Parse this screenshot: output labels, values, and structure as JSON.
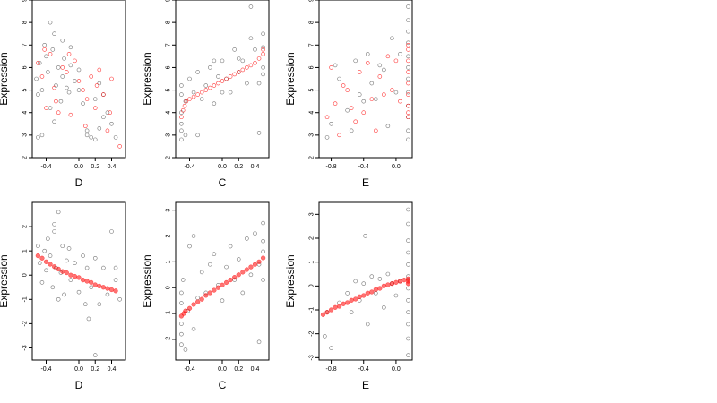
{
  "colors": {
    "points": "#000000",
    "highlight": "#ff0000",
    "frame": "#000000",
    "background": "#ffffff"
  },
  "chart_data": [
    {
      "type": "scatter",
      "panel": "top-left",
      "xlabel": "D",
      "ylabel": "Expression",
      "xlim": [
        -0.57,
        0.57
      ],
      "ylim": [
        2,
        9
      ],
      "xticks": [
        -0.4,
        0.0,
        0.2,
        0.4
      ],
      "xtick_labels": [
        "-0.4",
        "0.0",
        "0.2",
        "0.4"
      ],
      "yticks": [
        2,
        3,
        4,
        5,
        6,
        7,
        8,
        9
      ],
      "ytick_labels": [
        "2",
        "3",
        "4",
        "5",
        "6",
        "7",
        "8",
        "9"
      ],
      "grid": false,
      "legend": "none",
      "series": [
        {
          "color": "black",
          "marker": "open-circle",
          "x": [
            -0.52,
            -0.5,
            -0.48,
            -0.45,
            -0.42,
            -0.4,
            -0.38,
            -0.35,
            -0.32,
            -0.3,
            -0.28,
            -0.25,
            -0.22,
            -0.2,
            -0.18,
            -0.15,
            -0.12,
            -0.1,
            -0.05,
            0.0,
            0.05,
            0.1,
            0.15,
            0.2,
            0.25,
            0.3,
            0.35,
            0.4,
            0.45,
            -0.45,
            -0.35,
            -0.2,
            -0.1,
            0.1,
            0.2,
            0.3,
            -0.5,
            -0.3,
            0.0,
            0.25
          ],
          "y": [
            5.5,
            4.8,
            6.2,
            5.0,
            7.0,
            6.5,
            5.8,
            4.2,
            6.8,
            7.5,
            5.2,
            6.0,
            4.5,
            5.6,
            6.4,
            5.1,
            4.9,
            6.1,
            5.4,
            5.0,
            4.4,
            3.2,
            2.9,
            4.6,
            5.3,
            3.8,
            4.0,
            3.5,
            2.9,
            3.0,
            8.0,
            7.2,
            6.9,
            3.0,
            2.8,
            4.8,
            2.9,
            3.6,
            5.9,
            3.3
          ]
        },
        {
          "color": "red",
          "marker": "open-circle",
          "x": [
            -0.5,
            -0.45,
            -0.4,
            -0.35,
            -0.3,
            -0.25,
            -0.2,
            -0.15,
            -0.1,
            -0.05,
            0.0,
            0.05,
            0.1,
            0.15,
            0.2,
            0.25,
            0.3,
            0.35,
            0.4,
            0.5,
            -0.42,
            -0.28,
            -0.12,
            0.08,
            0.22,
            0.38
          ],
          "y": [
            6.2,
            5.6,
            4.2,
            6.6,
            5.1,
            4.0,
            6.0,
            5.8,
            3.9,
            6.3,
            5.4,
            5.0,
            4.6,
            5.6,
            4.2,
            5.9,
            4.8,
            3.2,
            5.5,
            2.5,
            6.8,
            4.5,
            6.6,
            3.4,
            5.2,
            4.0
          ]
        }
      ]
    },
    {
      "type": "scatter",
      "panel": "top-middle",
      "xlabel": "C",
      "ylabel": "Expression",
      "xlim": [
        -0.57,
        0.57
      ],
      "ylim": [
        2,
        9
      ],
      "xticks": [
        -0.4,
        0.0,
        0.2,
        0.4
      ],
      "xtick_labels": [
        "-0.4",
        "0.0",
        "0.2",
        "0.4"
      ],
      "yticks": [
        2,
        3,
        4,
        5,
        6,
        7,
        8,
        9
      ],
      "ytick_labels": [
        "2",
        "3",
        "4",
        "5",
        "6",
        "7",
        "8",
        "9"
      ],
      "grid": false,
      "legend": "none",
      "series": [
        {
          "color": "black",
          "marker": "open-circle",
          "x": [
            -0.5,
            -0.5,
            -0.5,
            -0.5,
            -0.5,
            -0.5,
            -0.45,
            -0.45,
            -0.4,
            -0.35,
            -0.3,
            -0.3,
            -0.25,
            -0.2,
            -0.15,
            -0.1,
            -0.05,
            0.0,
            0.05,
            0.1,
            0.15,
            0.2,
            0.25,
            0.3,
            0.35,
            0.4,
            0.45,
            0.5,
            0.5,
            0.5,
            0.5,
            -0.1,
            0.0,
            0.2,
            0.35,
            0.45
          ],
          "y": [
            2.8,
            3.2,
            3.5,
            4.0,
            4.8,
            5.2,
            3.0,
            4.5,
            5.5,
            4.9,
            3.0,
            5.8,
            4.6,
            5.2,
            6.0,
            4.4,
            5.6,
            6.3,
            5.5,
            4.9,
            6.8,
            5.8,
            6.3,
            5.3,
            7.3,
            6.8,
            5.3,
            6.9,
            7.5,
            6.0,
            5.7,
            6.3,
            4.9,
            6.4,
            8.7,
            3.1
          ]
        },
        {
          "color": "red",
          "marker": "open-circle",
          "x": [
            -0.5,
            -0.48,
            -0.46,
            -0.44,
            -0.4,
            -0.35,
            -0.3,
            -0.25,
            -0.2,
            -0.15,
            -0.1,
            -0.05,
            0.0,
            0.05,
            0.1,
            0.15,
            0.2,
            0.25,
            0.3,
            0.35,
            0.4,
            0.45,
            0.5,
            0.5
          ],
          "y": [
            3.8,
            4.1,
            4.3,
            4.5,
            4.6,
            4.7,
            4.8,
            4.9,
            5.0,
            5.1,
            5.2,
            5.3,
            5.4,
            5.5,
            5.6,
            5.7,
            5.8,
            5.9,
            6.0,
            6.1,
            6.2,
            6.4,
            6.6,
            6.8
          ]
        }
      ]
    },
    {
      "type": "scatter",
      "panel": "top-right",
      "xlabel": "E",
      "ylabel": "Expression",
      "xlim": [
        -0.95,
        0.2
      ],
      "ylim": [
        2,
        9
      ],
      "xticks": [
        -0.8,
        -0.4,
        0.0
      ],
      "xtick_labels": [
        "-0.8",
        "-0.4",
        "0.0"
      ],
      "yticks": [
        2,
        3,
        4,
        5,
        6,
        7,
        8,
        9
      ],
      "ytick_labels": [
        "2",
        "3",
        "4",
        "5",
        "6",
        "7",
        "8",
        "9"
      ],
      "grid": false,
      "legend": "none",
      "series": [
        {
          "color": "black",
          "marker": "open-circle",
          "x": [
            -0.85,
            -0.8,
            -0.75,
            -0.7,
            -0.6,
            -0.55,
            -0.5,
            -0.45,
            -0.4,
            -0.35,
            -0.3,
            -0.25,
            -0.2,
            -0.15,
            -0.1,
            -0.05,
            0.0,
            0.05,
            0.15,
            0.15,
            0.15,
            0.15,
            0.15,
            0.15,
            0.15,
            0.15,
            0.15,
            0.15,
            0.15,
            0.15
          ],
          "y": [
            2.9,
            3.5,
            6.1,
            5.5,
            4.1,
            3.2,
            6.3,
            4.8,
            4.5,
            6.6,
            5.3,
            4.6,
            6.1,
            5.9,
            3.4,
            7.3,
            4.9,
            6.6,
            2.8,
            3.2,
            3.8,
            4.3,
            4.9,
            5.5,
            6.0,
            6.5,
            7.1,
            7.6,
            8.1,
            8.7
          ]
        },
        {
          "color": "red",
          "marker": "open-circle",
          "x": [
            -0.85,
            -0.8,
            -0.75,
            -0.7,
            -0.65,
            -0.6,
            -0.55,
            -0.5,
            -0.45,
            -0.4,
            -0.35,
            -0.3,
            -0.25,
            -0.2,
            -0.15,
            -0.1,
            -0.05,
            0.0,
            0.05,
            0.15,
            0.15,
            0.15,
            0.15,
            0.15,
            0.15,
            0.15,
            0.15,
            0.15
          ],
          "y": [
            3.8,
            6.0,
            4.4,
            3.0,
            5.2,
            5.0,
            4.2,
            3.6,
            5.8,
            4.0,
            6.2,
            4.6,
            3.2,
            5.6,
            4.8,
            6.5,
            5.0,
            6.3,
            4.5,
            3.8,
            4.3,
            4.8,
            5.3,
            5.8,
            6.3,
            6.8,
            7.0,
            4.0
          ]
        }
      ]
    },
    {
      "type": "scatter",
      "panel": "bottom-left",
      "xlabel": "D",
      "ylabel": "Expression",
      "xlim": [
        -0.57,
        0.57
      ],
      "ylim": [
        -3.5,
        3.0
      ],
      "xticks": [
        -0.4,
        0.0,
        0.2,
        0.4
      ],
      "xtick_labels": [
        "-0.4",
        "0.0",
        "0.2",
        "0.4"
      ],
      "yticks": [
        -3,
        -2,
        -1,
        0,
        1,
        2
      ],
      "ytick_labels": [
        "-3",
        "-2",
        "-1",
        "0",
        "1",
        "2"
      ],
      "grid": false,
      "legend": "none",
      "series": [
        {
          "color": "black",
          "marker": "open-circle",
          "x": [
            -0.5,
            -0.48,
            -0.45,
            -0.42,
            -0.4,
            -0.38,
            -0.35,
            -0.32,
            -0.3,
            -0.28,
            -0.25,
            -0.22,
            -0.2,
            -0.18,
            -0.15,
            -0.12,
            -0.1,
            -0.05,
            0.0,
            0.05,
            0.08,
            0.1,
            0.12,
            0.15,
            0.2,
            0.25,
            0.3,
            0.35,
            0.4,
            0.45,
            0.5,
            -0.3,
            -0.25,
            0.2,
            0.45
          ],
          "y": [
            1.2,
            0.5,
            -0.3,
            1.0,
            0.2,
            1.5,
            0.8,
            -0.5,
            1.8,
            0.3,
            2.6,
            0.1,
            1.2,
            -0.8,
            0.6,
            1.1,
            -0.2,
            0.5,
            -0.7,
            0.8,
            -1.2,
            0.3,
            -1.8,
            -0.5,
            0.7,
            -1.2,
            0.3,
            -0.8,
            1.8,
            -0.2,
            -1.0,
            2.1,
            -1.0,
            -3.3,
            0.3
          ]
        },
        {
          "color": "red",
          "marker": "filled-circle",
          "x": [
            -0.5,
            -0.45,
            -0.4,
            -0.35,
            -0.3,
            -0.25,
            -0.2,
            -0.15,
            -0.1,
            -0.05,
            0.0,
            0.05,
            0.1,
            0.15,
            0.2,
            0.25,
            0.3,
            0.35,
            0.4,
            0.45
          ],
          "y": [
            0.8,
            0.7,
            0.55,
            0.45,
            0.35,
            0.25,
            0.15,
            0.1,
            0.0,
            -0.05,
            -0.1,
            -0.2,
            -0.25,
            -0.3,
            -0.4,
            -0.45,
            -0.5,
            -0.55,
            -0.6,
            -0.65
          ]
        }
      ]
    },
    {
      "type": "scatter",
      "panel": "bottom-middle",
      "xlabel": "C",
      "ylabel": "Expression",
      "xlim": [
        -0.57,
        0.57
      ],
      "ylim": [
        -2.8,
        3.3
      ],
      "xticks": [
        -0.4,
        0.0,
        0.2,
        0.4
      ],
      "xtick_labels": [
        "-0.4",
        "0.0",
        "0.2",
        "0.4"
      ],
      "yticks": [
        -2,
        -1,
        0,
        1,
        2,
        3
      ],
      "ytick_labels": [
        "-2",
        "-1",
        "0",
        "1",
        "2",
        "3"
      ],
      "grid": false,
      "legend": "none",
      "series": [
        {
          "color": "black",
          "marker": "open-circle",
          "x": [
            -0.5,
            -0.5,
            -0.5,
            -0.5,
            -0.5,
            -0.48,
            -0.45,
            -0.42,
            -0.4,
            -0.35,
            -0.3,
            -0.25,
            -0.2,
            -0.15,
            -0.1,
            -0.05,
            0.0,
            0.05,
            0.1,
            0.15,
            0.2,
            0.25,
            0.3,
            0.35,
            0.4,
            0.45,
            0.5,
            0.5,
            0.5,
            0.5,
            -0.35,
            0.45
          ],
          "y": [
            -2.2,
            -1.8,
            -1.4,
            -0.6,
            -0.2,
            0.3,
            -2.4,
            -0.9,
            1.6,
            -1.6,
            -0.4,
            0.6,
            -0.2,
            0.9,
            1.3,
            0.1,
            -0.5,
            0.8,
            1.6,
            0.3,
            1.1,
            -0.2,
            1.9,
            0.5,
            2.1,
            0.9,
            1.4,
            0.3,
            2.5,
            1.8,
            2.0,
            -2.1
          ]
        },
        {
          "color": "red",
          "marker": "filled-circle",
          "x": [
            -0.5,
            -0.47,
            -0.45,
            -0.4,
            -0.35,
            -0.3,
            -0.25,
            -0.2,
            -0.15,
            -0.1,
            -0.05,
            0.0,
            0.05,
            0.1,
            0.15,
            0.2,
            0.25,
            0.3,
            0.35,
            0.4,
            0.45,
            0.5
          ],
          "y": [
            -1.1,
            -1.0,
            -0.9,
            -0.8,
            -0.65,
            -0.55,
            -0.45,
            -0.3,
            -0.2,
            -0.1,
            0.0,
            0.1,
            0.2,
            0.3,
            0.4,
            0.5,
            0.6,
            0.7,
            0.8,
            0.9,
            1.0,
            1.15
          ]
        }
      ]
    },
    {
      "type": "scatter",
      "panel": "bottom-right",
      "xlabel": "E",
      "ylabel": "Expression",
      "xlim": [
        -0.95,
        0.2
      ],
      "ylim": [
        -3.1,
        3.5
      ],
      "xticks": [
        -0.8,
        -0.4,
        0.0
      ],
      "xtick_labels": [
        "-0.8",
        "-0.4",
        "0.0"
      ],
      "yticks": [
        -3,
        -2,
        -1,
        0,
        1,
        2,
        3
      ],
      "ytick_labels": [
        "-3",
        "-2",
        "-1",
        "0",
        "1",
        "2",
        "3"
      ],
      "grid": false,
      "legend": "none",
      "series": [
        {
          "color": "black",
          "marker": "open-circle",
          "x": [
            -0.88,
            -0.85,
            -0.8,
            -0.7,
            -0.6,
            -0.55,
            -0.5,
            -0.45,
            -0.4,
            -0.38,
            -0.35,
            -0.3,
            -0.25,
            -0.2,
            -0.15,
            -0.1,
            -0.05,
            0.0,
            0.05,
            0.15,
            0.15,
            0.15,
            0.15,
            0.15,
            0.15,
            0.15,
            0.15,
            0.15,
            0.15,
            0.15,
            0.15
          ],
          "y": [
            -2.1,
            -1.1,
            -2.6,
            -0.7,
            -0.3,
            -1.1,
            0.2,
            -0.6,
            0.1,
            2.1,
            -1.6,
            0.4,
            -0.3,
            0.3,
            -0.9,
            0.5,
            0.1,
            -0.4,
            0.2,
            -2.9,
            -2.2,
            -1.6,
            -1.1,
            -0.6,
            -0.1,
            0.4,
            0.9,
            1.4,
            1.9,
            2.6,
            3.2
          ]
        },
        {
          "color": "red",
          "marker": "filled-circle",
          "x": [
            -0.9,
            -0.85,
            -0.8,
            -0.75,
            -0.7,
            -0.65,
            -0.6,
            -0.55,
            -0.5,
            -0.45,
            -0.4,
            -0.35,
            -0.3,
            -0.25,
            -0.2,
            -0.15,
            -0.1,
            -0.05,
            0.0,
            0.05,
            0.1,
            0.15,
            0.15,
            0.15
          ],
          "y": [
            -1.2,
            -1.1,
            -1.0,
            -0.9,
            -0.85,
            -0.75,
            -0.7,
            -0.6,
            -0.55,
            -0.45,
            -0.4,
            -0.3,
            -0.25,
            -0.15,
            -0.1,
            0.0,
            0.05,
            0.1,
            0.15,
            0.2,
            0.25,
            0.3,
            0.1,
            0.2
          ]
        }
      ]
    }
  ]
}
